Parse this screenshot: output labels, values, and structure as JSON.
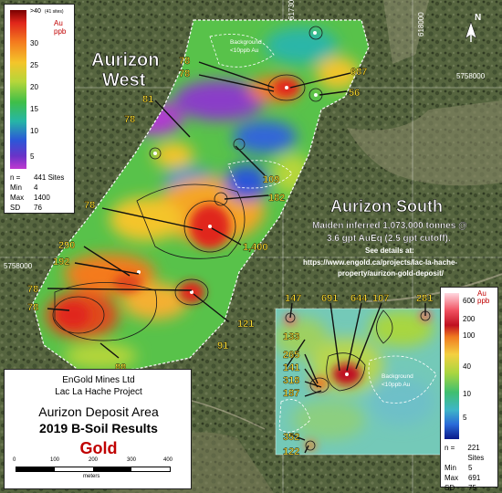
{
  "map": {
    "region_west": "Aurizon\nWest",
    "region_west_line1": "Aurizon",
    "region_west_line2": "West",
    "region_south": "Aurizon  South",
    "south_info_line1": "Maiden inferred 1,073,000 tonnes @",
    "south_info_line2": "3.6 gpt AuEq (2.5 gpt cutoff).",
    "south_info_line3": "See details at:",
    "south_info_line4": "https://www.engold.ca/projects/lac-la-hache-",
    "south_info_line5": "property/aurizon-gold-deposit/",
    "background_label_line1": "Background",
    "background_label_line2": "<10ppb  Au",
    "coord_top_1": "617300",
    "coord_top_2": "618000",
    "coord_right": "5758000",
    "coord_left": "5758000",
    "north_label": "N"
  },
  "annotations_west": [
    "78",
    "78",
    "687",
    "56",
    "81",
    "78",
    "109",
    "182",
    "78",
    "1,400",
    "290",
    "192",
    "78",
    "78",
    "121",
    "91",
    "88",
    "68"
  ],
  "annotations_south": [
    "147",
    "691",
    "644",
    "107",
    "281",
    "133",
    "265",
    "141",
    "318",
    "187",
    "352",
    "122"
  ],
  "legend_west": {
    "top_label": ">40",
    "top_sub": "(41 sites)",
    "unit_line1": "Au",
    "unit_line2": "ppb",
    "ticks": [
      "30",
      "25",
      "20",
      "15",
      "10",
      "5"
    ],
    "stats": [
      {
        "k": "n  =",
        "v": "441  Sites"
      },
      {
        "k": "Min",
        "v": "4"
      },
      {
        "k": "Max",
        "v": "1400"
      },
      {
        "k": "SD",
        "v": "76"
      }
    ]
  },
  "legend_south": {
    "unit_line1": "Au",
    "unit_line2": "ppb",
    "ticks": [
      "600",
      "200",
      "100",
      "40",
      "10",
      "5"
    ],
    "stats": [
      {
        "k": "n  =",
        "v": "221  Sites"
      },
      {
        "k": "Min",
        "v": "5"
      },
      {
        "k": "Max",
        "v": "691"
      },
      {
        "k": "SD",
        "v": "75"
      }
    ]
  },
  "title_panel": {
    "company": "EnGold  Mines  Ltd",
    "project": "Lac  La  Hache  Project",
    "area": "Aurizon  Deposit  Area",
    "results": "2019  B-Soil  Results",
    "element": "Gold",
    "scale_labels": [
      "0",
      "100",
      "200",
      "300",
      "400"
    ],
    "scale_unit": "meters"
  },
  "colors": {
    "gold_text": "#c00000",
    "annotation": "#ffe033"
  }
}
